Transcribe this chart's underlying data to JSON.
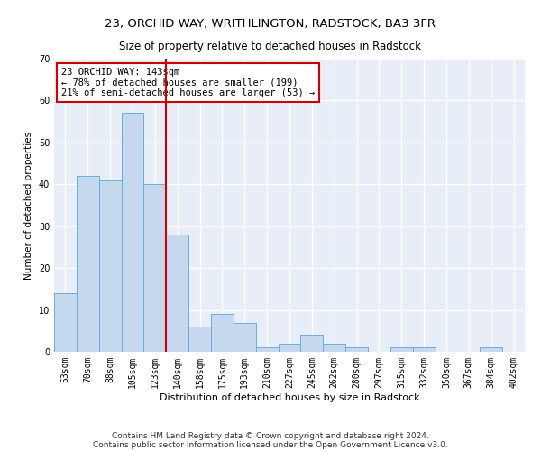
{
  "title": "23, ORCHID WAY, WRITHLINGTON, RADSTOCK, BA3 3FR",
  "subtitle": "Size of property relative to detached houses in Radstock",
  "xlabel": "Distribution of detached houses by size in Radstock",
  "ylabel": "Number of detached properties",
  "bar_color": "#c5d8ed",
  "bar_edge_color": "#6aaed6",
  "background_color": "#e8eef7",
  "grid_color": "#ffffff",
  "categories": [
    "53sqm",
    "70sqm",
    "88sqm",
    "105sqm",
    "123sqm",
    "140sqm",
    "158sqm",
    "175sqm",
    "193sqm",
    "210sqm",
    "227sqm",
    "245sqm",
    "262sqm",
    "280sqm",
    "297sqm",
    "315sqm",
    "332sqm",
    "350sqm",
    "367sqm",
    "384sqm",
    "402sqm"
  ],
  "values": [
    14,
    42,
    41,
    57,
    40,
    28,
    6,
    9,
    7,
    1,
    2,
    4,
    2,
    1,
    0,
    1,
    1,
    0,
    0,
    1,
    0
  ],
  "vline_x_index": 5,
  "vline_color": "#cc0000",
  "annotation_text": "23 ORCHID WAY: 143sqm\n← 78% of detached houses are smaller (199)\n21% of semi-detached houses are larger (53) →",
  "annotation_box_color": "#ffffff",
  "annotation_box_edge_color": "#cc0000",
  "ylim": [
    0,
    70
  ],
  "yticks": [
    0,
    10,
    20,
    30,
    40,
    50,
    60,
    70
  ],
  "footnote_line1": "Contains HM Land Registry data © Crown copyright and database right 2024.",
  "footnote_line2": "Contains public sector information licensed under the Open Government Licence v3.0.",
  "title_fontsize": 9.5,
  "subtitle_fontsize": 8.5,
  "xlabel_fontsize": 8,
  "ylabel_fontsize": 7.5,
  "tick_fontsize": 7,
  "annotation_fontsize": 7.5,
  "footnote_fontsize": 6.5
}
